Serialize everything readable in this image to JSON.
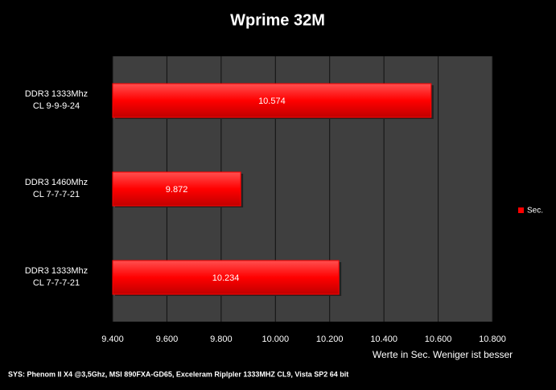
{
  "chart_data": {
    "type": "bar",
    "orientation": "horizontal",
    "title": "Wprime 32M",
    "categories": [
      "DDR3 1333Mhz\nCL 9-9-9-24",
      "DDR3 1460Mhz\nCL 7-7-7-21",
      "DDR3 1333Mhz\nCL 7-7-7-21"
    ],
    "series": [
      {
        "name": "Sec.",
        "color": "#ff0000",
        "values": [
          10.574,
          9.872,
          10.234
        ]
      }
    ],
    "xlim": [
      9.4,
      10.8
    ],
    "xticks": [
      {
        "value": 9.4,
        "label": "9.400"
      },
      {
        "value": 9.6,
        "label": "9.600"
      },
      {
        "value": 9.8,
        "label": "9.800"
      },
      {
        "value": 10.0,
        "label": "10.000"
      },
      {
        "value": 10.2,
        "label": "10.200"
      },
      {
        "value": 10.4,
        "label": "10.400"
      },
      {
        "value": 10.6,
        "label": "10.600"
      },
      {
        "value": 10.8,
        "label": "10.800"
      }
    ],
    "x_label": "Werte in Sec. Weniger ist besser",
    "footnote": "SYS: Phenom II X4 @3,5Ghz, MSI 890FXA-GD65, Exceleram Riplpler 1333MHZ CL9, Vista SP2 64 bit",
    "grid": true,
    "legend": "right"
  }
}
